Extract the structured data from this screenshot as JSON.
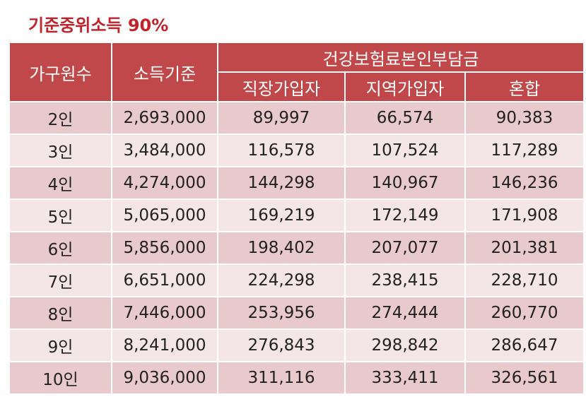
{
  "title": "기준중위소득 90%",
  "table": {
    "headers": {
      "household": "가구원수",
      "income": "소득기준",
      "premium_group": "건강보험료본인부담금",
      "employee": "직장가입자",
      "regional": "지역가입자",
      "mixed": "혼합"
    },
    "rows": [
      {
        "household": "2인",
        "income": "2,693,000",
        "employee": "89,997",
        "regional": "66,574",
        "mixed": "90,383"
      },
      {
        "household": "3인",
        "income": "3,484,000",
        "employee": "116,578",
        "regional": "107,524",
        "mixed": "117,289"
      },
      {
        "household": "4인",
        "income": "4,274,000",
        "employee": "144,298",
        "regional": "140,967",
        "mixed": "146,236"
      },
      {
        "household": "5인",
        "income": "5,065,000",
        "employee": "169,219",
        "regional": "172,149",
        "mixed": "171,908"
      },
      {
        "household": "6인",
        "income": "5,856,000",
        "employee": "198,402",
        "regional": "207,077",
        "mixed": "201,381"
      },
      {
        "household": "7인",
        "income": "6,651,000",
        "employee": "224,298",
        "regional": "238,415",
        "mixed": "228,710"
      },
      {
        "household": "8인",
        "income": "7,446,000",
        "employee": "253,956",
        "regional": "274,444",
        "mixed": "260,770"
      },
      {
        "household": "9인",
        "income": "8,241,000",
        "employee": "276,843",
        "regional": "298,842",
        "mixed": "286,647"
      },
      {
        "household": "10인",
        "income": "9,036,000",
        "employee": "311,116",
        "regional": "333,411",
        "mixed": "326,561"
      }
    ]
  },
  "colors": {
    "title": "#c0232b",
    "header_bg": "#c0474a",
    "row_dark": "#e8c9cc",
    "row_light": "#f4e5e6"
  }
}
